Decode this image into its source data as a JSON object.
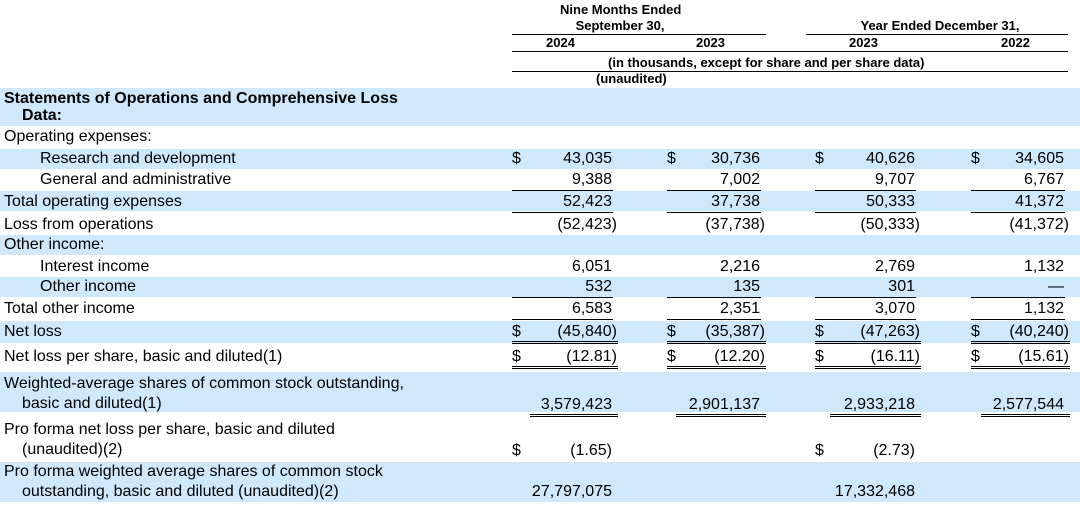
{
  "header": {
    "nine_months_line1": "Nine Months Ended",
    "nine_months_line2": "September 30,",
    "year_ended": "Year Ended December 31,",
    "col_2024": "2024",
    "col_2023a": "2023",
    "col_2023b": "2023",
    "col_2022": "2022",
    "thousands_note": "(in thousands, except for share and per share data)",
    "unaudited_note": "(unaudited)"
  },
  "section": {
    "line1": "Statements of Operations and Comprehensive Loss",
    "line2": "Data:"
  },
  "rows": [
    {
      "label": "Operating expenses:"
    },
    {
      "label": "Research and development",
      "v": [
        "43,035",
        "30,736",
        "40,626",
        "34,605"
      ],
      "d": [
        "$",
        "$",
        "$",
        "$"
      ]
    },
    {
      "label": "General and administrative",
      "v": [
        "9,388",
        "7,002",
        "9,707",
        "6,767"
      ]
    },
    {
      "label": "Total operating expenses",
      "v": [
        "52,423",
        "37,738",
        "50,333",
        "41,372"
      ]
    },
    {
      "label": "Loss from operations",
      "v": [
        "(52,423)",
        "(37,738)",
        "(50,333)",
        "(41,372)"
      ]
    },
    {
      "label": "Other income:"
    },
    {
      "label": "Interest income",
      "v": [
        "6,051",
        "2,216",
        "2,769",
        "1,132"
      ]
    },
    {
      "label": "Other income",
      "v": [
        "532",
        "135",
        "301",
        "—"
      ]
    },
    {
      "label": "Total other income",
      "v": [
        "6,583",
        "2,351",
        "3,070",
        "1,132"
      ]
    },
    {
      "label": "Net loss",
      "v": [
        "(45,840)",
        "(35,387)",
        "(47,263)",
        "(40,240)"
      ],
      "d": [
        "$",
        "$",
        "$",
        "$"
      ]
    },
    {
      "label": "Net loss per share, basic and diluted(1)",
      "v": [
        "(12.81)",
        "(12.20)",
        "(16.11)",
        "(15.61)"
      ],
      "d": [
        "$",
        "$",
        "$",
        "$"
      ]
    },
    {
      "label1": "Weighted-average shares of common stock outstanding,",
      "label2": "basic and diluted(1)",
      "v": [
        "3,579,423",
        "2,901,137",
        "2,933,218",
        "2,577,544"
      ]
    },
    {
      "label1": "Pro forma net loss per share, basic and diluted",
      "label2": "(unaudited)(2)",
      "v": [
        "(1.65)",
        "",
        "(2.73)",
        ""
      ],
      "d": [
        "$",
        "",
        "$",
        ""
      ]
    },
    {
      "label1": "Pro forma weighted average shares of common stock",
      "label2": "outstanding, basic and diluted (unaudited)(2)",
      "v": [
        "27,797,075",
        "",
        "17,332,468",
        ""
      ]
    }
  ]
}
